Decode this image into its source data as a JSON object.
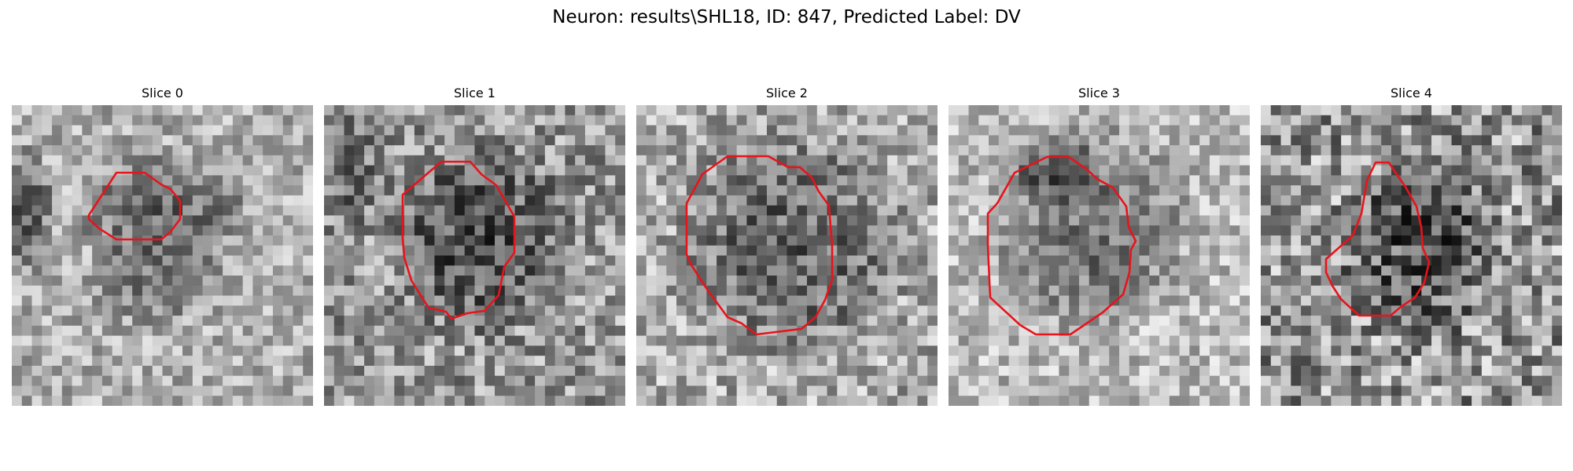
{
  "suptitle": "Neuron: results\\SHL18, ID: 847, Predicted Label: DV",
  "colors": {
    "contour": "#e8131b",
    "colormap": "gray",
    "background": "#ffffff"
  },
  "panels": [
    {
      "title": "Slice 0"
    },
    {
      "title": "Slice 1"
    },
    {
      "title": "Slice 2"
    },
    {
      "title": "Slice 3"
    },
    {
      "title": "Slice 4"
    }
  ]
}
